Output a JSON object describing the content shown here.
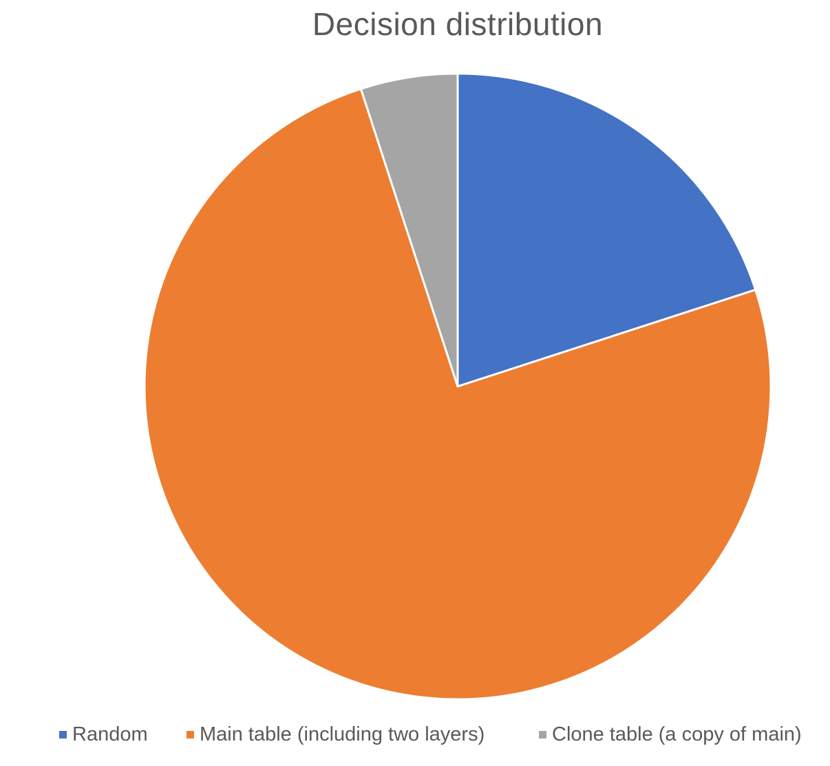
{
  "chart_data": {
    "type": "pie",
    "title": "Decision distribution",
    "categories": [
      "Random",
      "Main table (including two layers)",
      "Clone table (a copy of main)"
    ],
    "values": [
      20,
      75,
      5
    ],
    "colors": [
      "#4472C4",
      "#ED7D31",
      "#A5A5A5"
    ],
    "start_angle": "12 o'clock, clockwise",
    "legend_position": "bottom",
    "data_labels_shown": false
  }
}
